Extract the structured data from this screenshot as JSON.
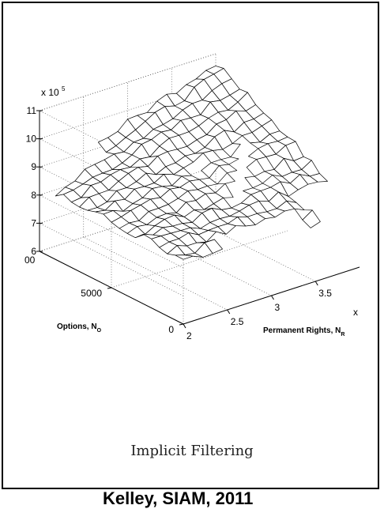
{
  "chart_data": {
    "type": "surface",
    "title": "",
    "x_axis": {
      "label": "Permanent Rights, N",
      "label_subscript": "R",
      "range": [
        2,
        4
      ],
      "ticks": [
        "2",
        "2.5",
        "3",
        "3.5"
      ],
      "truncated_tick": "x"
    },
    "y_axis": {
      "label": "Options, N",
      "label_subscript": "O",
      "range": [
        0,
        10000
      ],
      "ticks": [
        "0",
        "5000"
      ],
      "truncated_tick": "00"
    },
    "z_axis": {
      "multiplier_base": "x 10",
      "multiplier_exp": "5",
      "range": [
        6,
        11
      ],
      "ticks": [
        "6",
        "7",
        "8",
        "9",
        "10",
        "11"
      ],
      "truncated_ticks": [
        "6",
        "7",
        "8",
        "9",
        "10",
        "11"
      ]
    },
    "grid": true,
    "surface": {
      "description_values": "cost surface with missing regions",
      "rows": 18,
      "cols": 18,
      "z_corner_values_e5": {
        "n_r_2_n_o_0": 8.3,
        "n_r_4_n_o_0": 8.0,
        "n_r_2_n_o_10000": 8.4,
        "n_r_4_n_o_10000": 10.7
      },
      "noise_amplitude_e5": 0.15
    }
  },
  "caption": "Implicit Filtering",
  "footer_partial": "Kelley, SIAM, 2011"
}
